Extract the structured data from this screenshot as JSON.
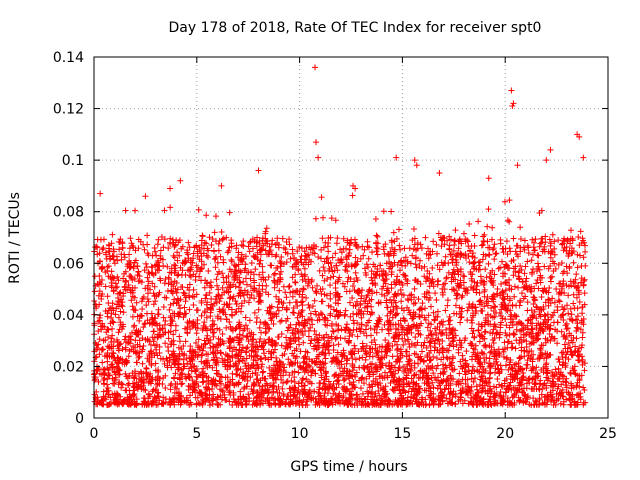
{
  "chart_data": {
    "type": "scatter",
    "title": "Day 178 of 2018, Rate Of TEC Index for receiver spt0",
    "xlabel": "GPS time / hours",
    "ylabel": "ROTI / TECUs",
    "xlim": [
      0,
      25
    ],
    "ylim": [
      0,
      0.14
    ],
    "xticks": [
      0,
      5,
      10,
      15,
      20,
      25
    ],
    "xtick_labels": [
      "0",
      "5",
      "10",
      "15",
      "20",
      "25"
    ],
    "yticks": [
      0,
      0.02,
      0.04,
      0.06,
      0.08,
      0.1,
      0.12,
      0.14
    ],
    "ytick_labels": [
      "0",
      "0.02",
      "0.04",
      "0.06",
      "0.08",
      "0.1",
      "0.12",
      "0.14"
    ],
    "grid": true,
    "marker": "+",
    "color": "#ff0000",
    "series": [
      {
        "name": "ROTI",
        "note": "dense scatter of ~6000 samples from 0 to 24 h, mostly 0.005-0.07 TECU/min; notable peaks below",
        "x": [
          10.75,
          20.3,
          20.4,
          20.35,
          23.5,
          23.6,
          10.8,
          10.9,
          14.7,
          15.6,
          15.7,
          22.0,
          22.2,
          23.8,
          4.2,
          8.0,
          12.6,
          12.7,
          20.6,
          19.2,
          16.8,
          6.2,
          0.3,
          2.5,
          3.7
        ],
        "y": [
          0.136,
          0.127,
          0.122,
          0.121,
          0.11,
          0.109,
          0.107,
          0.101,
          0.101,
          0.1,
          0.098,
          0.1,
          0.104,
          0.101,
          0.092,
          0.096,
          0.09,
          0.089,
          0.098,
          0.093,
          0.095,
          0.09,
          0.087,
          0.086,
          0.089
        ]
      }
    ],
    "background_band": {
      "y_min": 0.005,
      "y_max": 0.07,
      "density_note": "bulk of data"
    }
  }
}
